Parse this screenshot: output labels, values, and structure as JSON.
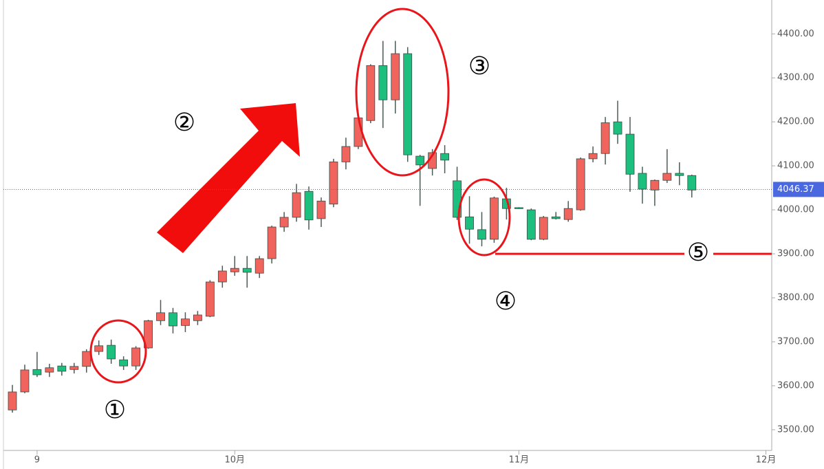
{
  "chart_data": {
    "type": "candlestick",
    "categories": [
      null,
      null,
      "9",
      null,
      null,
      null,
      null,
      null,
      null,
      null,
      null,
      null,
      null,
      null,
      null,
      null,
      null,
      null,
      "10月",
      null,
      null,
      null,
      null,
      null,
      null,
      null,
      null,
      null,
      null,
      null,
      null,
      null,
      null,
      null,
      null,
      null,
      null,
      null,
      null,
      null,
      null,
      "11月",
      null,
      null,
      null,
      null,
      null,
      null,
      null,
      null,
      null,
      null,
      null,
      null,
      null,
      null,
      null,
      null,
      null,
      null,
      null,
      "12月"
    ],
    "open": [
      3545,
      3586,
      3637,
      3631,
      3645,
      3637,
      3644,
      3678,
      3692,
      3659,
      3645,
      3686,
      3748,
      3766,
      3737,
      3748,
      3758,
      3836,
      3859,
      3867,
      3856,
      3889,
      3961,
      3983,
      4042,
      3980,
      4013,
      4109,
      4144,
      4203,
      4328,
      4250,
      4355,
      4122,
      4094,
      4128,
      4066,
      3984,
      3955,
      3933,
      4025,
      4005,
      4000,
      3933,
      3984,
      3978,
      4000,
      4116,
      4128,
      4200,
      4172,
      4083,
      4045,
      4067,
      4083,
      4078,
      null,
      null,
      null,
      null,
      null,
      null
    ],
    "high": [
      3602,
      3648,
      3677,
      3650,
      3652,
      3652,
      3683,
      3703,
      3705,
      3667,
      3690,
      3750,
      3795,
      3777,
      3767,
      3770,
      3840,
      3873,
      3895,
      3895,
      3895,
      3964,
      3995,
      4059,
      4053,
      4028,
      4116,
      4164,
      4213,
      4331,
      4384,
      4384,
      4370,
      4125,
      4138,
      4147,
      4098,
      4031,
      3995,
      4030,
      4050,
      4006,
      4003,
      3986,
      3995,
      4020,
      4119,
      4144,
      4211,
      4248,
      4211,
      4098,
      4069,
      4138,
      4108,
      4080,
      null,
      null,
      null,
      null,
      null,
      null
    ],
    "low": [
      3539,
      3583,
      3620,
      3620,
      3623,
      3628,
      3630,
      3670,
      3650,
      3636,
      3636,
      3684,
      3738,
      3719,
      3722,
      3738,
      3756,
      3823,
      3850,
      3823,
      3845,
      3878,
      3950,
      3973,
      3955,
      3961,
      4006,
      4092,
      4138,
      4197,
      4186,
      4219,
      4109,
      4009,
      4078,
      4083,
      3977,
      3923,
      3917,
      3925,
      3978,
      4002,
      3931,
      3931,
      3978,
      3973,
      3998,
      4108,
      4103,
      4150,
      4041,
      4014,
      4009,
      4061,
      4056,
      4028,
      null,
      null,
      null,
      null,
      null,
      null
    ],
    "close": [
      3586,
      3636,
      3625,
      3641,
      3633,
      3644,
      3678,
      3691,
      3661,
      3645,
      3686,
      3748,
      3766,
      3736,
      3752,
      3761,
      3836,
      3861,
      3867,
      3858,
      3889,
      3961,
      3983,
      4039,
      3977,
      4020,
      4109,
      4144,
      4209,
      4328,
      4250,
      4355,
      4125,
      4102,
      4130,
      4113,
      3983,
      3956,
      3933,
      4027,
      4003,
      4003,
      3933,
      3983,
      3980,
      4003,
      4116,
      4128,
      4198,
      4172,
      4081,
      4047,
      4067,
      4083,
      4078,
      4045,
      null,
      null,
      null,
      null,
      null,
      null
    ],
    "up_color": "#f0645d",
    "down_color": "#1dbf7e",
    "ylim": [
      3453,
      4477
    ],
    "yticks": [
      {
        "value": 3500,
        "label": "3500.00"
      },
      {
        "value": 3600,
        "label": "3600.00"
      },
      {
        "value": 3700,
        "label": "3700.00"
      },
      {
        "value": 3800,
        "label": "3800.00"
      },
      {
        "value": 3900,
        "label": "3900.00"
      },
      {
        "value": 4000,
        "label": "4000.00"
      },
      {
        "value": 4100,
        "label": "4100.00"
      },
      {
        "value": 4200,
        "label": "4200.00"
      },
      {
        "value": 4300,
        "label": "4300.00"
      },
      {
        "value": 4400,
        "label": "4400.00"
      }
    ],
    "last_price": 4046.37,
    "level": {
      "value": 3900,
      "label": "⑤"
    },
    "annotations": [
      "①",
      "②",
      "③",
      "④"
    ]
  }
}
